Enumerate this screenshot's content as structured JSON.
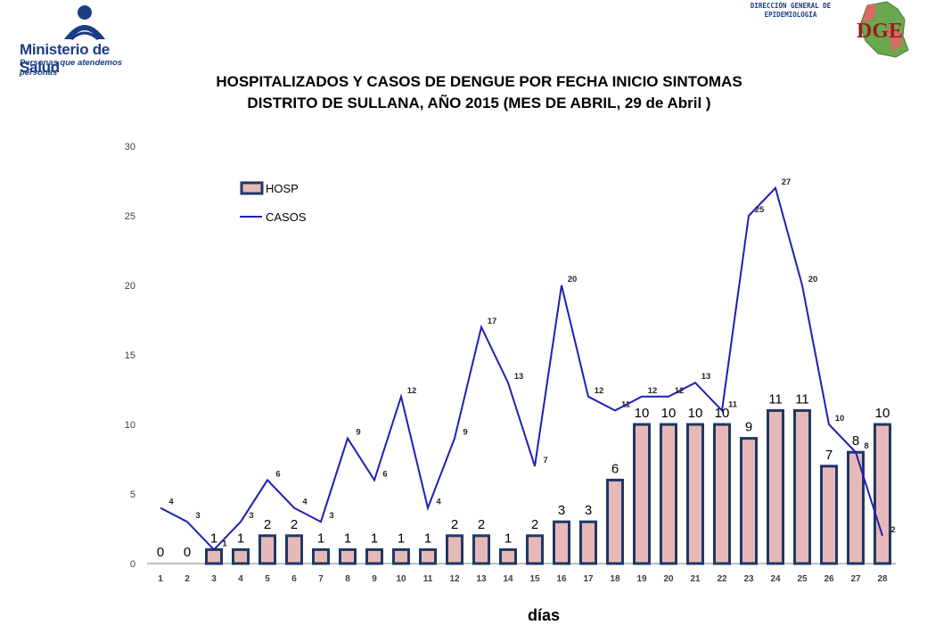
{
  "header": {
    "logo_name": "Ministerio de Salud",
    "logo_subtitle": "Personas que atendemos personas",
    "dge_line1": "DIRECCIÓN GENERAL DE",
    "dge_line2": "EPIDEMIOLOGIA",
    "dge_letters": "DGE",
    "title_line1": "HOSPITALIZADOS Y CASOS DE DENGUE POR FECHA INICIO SINTOMAS",
    "title_line2": "DISTRITO DE SULLANA, AÑO 2015 (MES DE ABRIL, 29 de Abril )"
  },
  "colors": {
    "bar_fill": "#e6b9b8",
    "bar_stroke": "#1f3864",
    "line": "#1f1fb4",
    "brand_blue": "#1b3d84"
  },
  "chart_data": {
    "type": "bar",
    "xlabel": "días",
    "ylabel": "",
    "ylim": [
      0,
      30
    ],
    "yticks": [
      0,
      5,
      10,
      15,
      20,
      25,
      30
    ],
    "grid": false,
    "legend_position": "top-left",
    "categories": [
      "1",
      "2",
      "3",
      "4",
      "5",
      "6",
      "7",
      "8",
      "9",
      "10",
      "11",
      "12",
      "13",
      "14",
      "15",
      "16",
      "17",
      "18",
      "19",
      "20",
      "21",
      "22",
      "23",
      "24",
      "25",
      "26",
      "27",
      "28"
    ],
    "series": [
      {
        "name": "HOSP",
        "type": "bar",
        "values": [
          0,
          0,
          1,
          1,
          2,
          2,
          1,
          1,
          1,
          1,
          1,
          2,
          2,
          1,
          2,
          3,
          3,
          6,
          10,
          10,
          10,
          10,
          9,
          11,
          11,
          7,
          8,
          10
        ]
      },
      {
        "name": "CASOS",
        "type": "line",
        "values": [
          4,
          3,
          1,
          3,
          6,
          4,
          3,
          9,
          6,
          12,
          4,
          9,
          17,
          13,
          7,
          20,
          12,
          11,
          12,
          12,
          13,
          11,
          25,
          27,
          20,
          10,
          8,
          2
        ]
      }
    ]
  }
}
